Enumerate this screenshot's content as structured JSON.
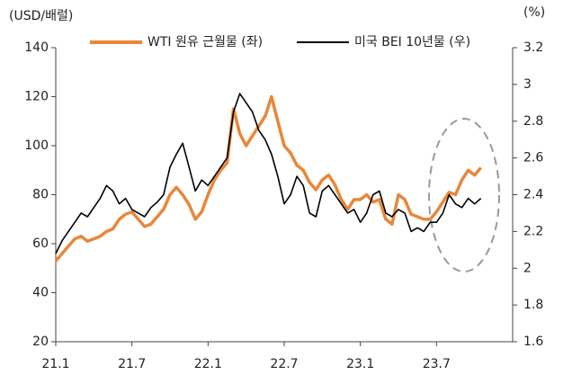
{
  "chart_data": {
    "type": "line",
    "y_label": "(USD/배럴)",
    "y2_label": "(%)",
    "categories": [
      "21.1",
      null,
      null,
      null,
      null,
      null,
      null,
      null,
      null,
      null,
      null,
      null,
      "21.7",
      null,
      null,
      null,
      null,
      null,
      null,
      null,
      null,
      null,
      null,
      null,
      "22.1",
      null,
      null,
      null,
      null,
      null,
      null,
      null,
      null,
      null,
      null,
      null,
      "22.7",
      null,
      null,
      null,
      null,
      null,
      null,
      null,
      null,
      null,
      null,
      null,
      "23.1",
      null,
      null,
      null,
      null,
      null,
      null,
      null,
      null,
      null,
      null,
      null,
      "23.7",
      null,
      null,
      null,
      null,
      null,
      null,
      null,
      null,
      null,
      null,
      null
    ],
    "series": [
      {
        "name": "WTI 원유 근월물 (좌)",
        "color": "#e8873a",
        "axis": "y",
        "values": [
          53,
          56,
          59,
          62,
          63,
          61,
          62,
          63,
          65,
          66,
          70,
          72,
          73,
          70,
          67,
          68,
          71,
          74,
          80,
          83,
          80,
          76,
          70,
          73,
          80,
          86,
          90,
          93,
          115,
          105,
          100,
          104,
          108,
          112,
          120,
          110,
          100,
          97,
          92,
          90,
          85,
          82,
          86,
          88,
          84,
          78,
          74,
          78,
          78,
          80,
          77,
          78,
          70,
          68,
          80,
          78,
          72,
          71,
          70,
          70,
          73,
          77,
          81,
          80,
          86,
          90,
          88,
          91,
          null,
          null,
          null,
          null
        ]
      },
      {
        "name": "미국 BEI 10년물 (우)",
        "color": "#000000",
        "axis": "y2",
        "values": [
          2.08,
          2.15,
          2.2,
          2.25,
          2.3,
          2.28,
          2.33,
          2.38,
          2.45,
          2.42,
          2.35,
          2.38,
          2.32,
          2.3,
          2.28,
          2.33,
          2.36,
          2.4,
          2.55,
          2.62,
          2.68,
          2.55,
          2.42,
          2.48,
          2.45,
          2.5,
          2.55,
          2.6,
          2.85,
          2.95,
          2.9,
          2.85,
          2.75,
          2.7,
          2.62,
          2.5,
          2.35,
          2.4,
          2.5,
          2.45,
          2.3,
          2.28,
          2.42,
          2.45,
          2.4,
          2.35,
          2.3,
          2.32,
          2.25,
          2.3,
          2.4,
          2.42,
          2.3,
          2.28,
          2.32,
          2.3,
          2.2,
          2.22,
          2.2,
          2.25,
          2.25,
          2.3,
          2.4,
          2.35,
          2.33,
          2.38,
          2.35,
          2.38,
          null,
          null,
          null,
          null
        ]
      }
    ],
    "ylim": [
      20,
      140
    ],
    "yticks": [
      20,
      40,
      60,
      80,
      100,
      120,
      140
    ],
    "y2lim": [
      1.6,
      3.2
    ],
    "y2ticks": [
      1.6,
      1.8,
      2,
      2.2,
      2.4,
      2.6,
      2.8,
      3,
      3.2
    ],
    "grid": false
  }
}
